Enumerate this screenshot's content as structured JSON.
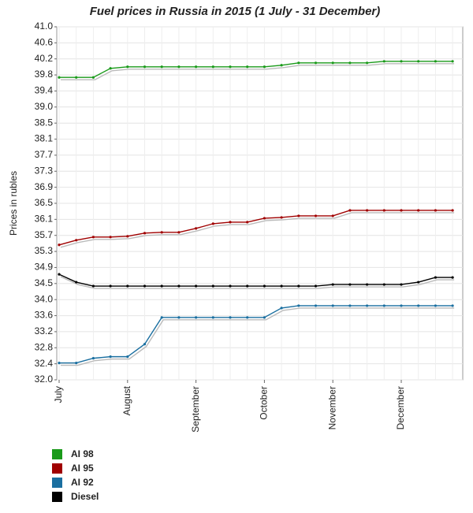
{
  "chart_data": {
    "type": "line",
    "title": "Fuel prices in Russia in 2015  (1 July - 31 December)",
    "y_label": "Prices in rubles",
    "categories": [
      "July",
      null,
      null,
      null,
      "August",
      null,
      null,
      null,
      "September",
      null,
      null,
      null,
      "October",
      null,
      null,
      null,
      "November",
      null,
      null,
      null,
      "December",
      null,
      null,
      null
    ],
    "series": [
      {
        "name": "AI 98",
        "color": "#1a9a1a",
        "values": [
          39.71,
          39.71,
          39.71,
          39.94,
          39.98,
          39.98,
          39.98,
          39.98,
          39.98,
          39.98,
          39.98,
          39.98,
          39.98,
          40.02,
          40.08,
          40.08,
          40.08,
          40.08,
          40.08,
          40.12,
          40.12,
          40.12,
          40.12,
          40.12
        ]
      },
      {
        "name": "AI 95",
        "color": "#a00000",
        "values": [
          35.44,
          35.56,
          35.64,
          35.64,
          35.66,
          35.74,
          35.76,
          35.76,
          35.86,
          35.98,
          36.02,
          36.02,
          36.12,
          36.14,
          36.18,
          36.18,
          36.18,
          36.32,
          36.32,
          36.32,
          36.32,
          36.32,
          36.32,
          36.32
        ]
      },
      {
        "name": "AI 92",
        "color": "#1a6fa0",
        "values": [
          32.43,
          32.43,
          32.55,
          32.59,
          32.59,
          32.91,
          33.59,
          33.59,
          33.59,
          33.59,
          33.59,
          33.59,
          33.59,
          33.83,
          33.89,
          33.89,
          33.89,
          33.89,
          33.89,
          33.89,
          33.89,
          33.89,
          33.89,
          33.89
        ]
      },
      {
        "name": "Diesel",
        "color": "#000000",
        "values": [
          34.69,
          34.49,
          34.39,
          34.39,
          34.39,
          34.39,
          34.39,
          34.39,
          34.39,
          34.39,
          34.39,
          34.39,
          34.39,
          34.39,
          34.39,
          34.39,
          34.43,
          34.43,
          34.43,
          34.43,
          34.43,
          34.49,
          34.61,
          34.61
        ]
      }
    ],
    "ylim": [
      32.0,
      41.0
    ],
    "yticks": [
      {
        "value": 32.0,
        "label": "32.0"
      },
      {
        "value": 32.409,
        "label": "32.4"
      },
      {
        "value": 32.818,
        "label": "32.8"
      },
      {
        "value": 33.227,
        "label": "33.2"
      },
      {
        "value": 33.636,
        "label": "33.6"
      },
      {
        "value": 34.045,
        "label": "34.0"
      },
      {
        "value": 34.455,
        "label": "34.5"
      },
      {
        "value": 34.864,
        "label": "34.9"
      },
      {
        "value": 35.273,
        "label": "35.3"
      },
      {
        "value": 35.682,
        "label": "35.7"
      },
      {
        "value": 36.091,
        "label": "36.1"
      },
      {
        "value": 36.5,
        "label": "36.5"
      },
      {
        "value": 36.909,
        "label": "36.9"
      },
      {
        "value": 37.318,
        "label": "37.3"
      },
      {
        "value": 37.727,
        "label": "37.7"
      },
      {
        "value": 38.136,
        "label": "38.1"
      },
      {
        "value": 38.545,
        "label": "38.5"
      },
      {
        "value": 38.955,
        "label": "39.0"
      },
      {
        "value": 39.364,
        "label": "39.4"
      },
      {
        "value": 39.773,
        "label": "39.8"
      },
      {
        "value": 40.182,
        "label": "40.2"
      },
      {
        "value": 40.591,
        "label": "40.6"
      },
      {
        "value": 41.0,
        "label": "41.0"
      }
    ],
    "grid": true
  }
}
